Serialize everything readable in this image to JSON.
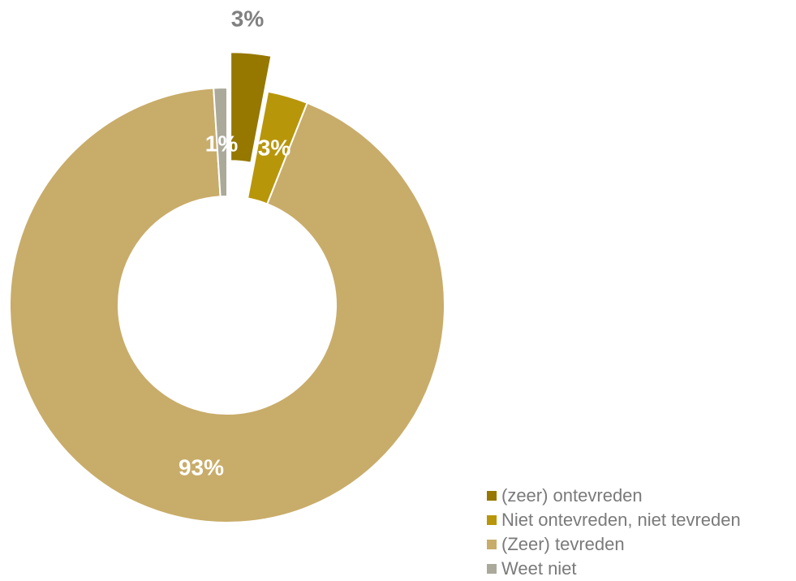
{
  "chart_data": {
    "type": "pie",
    "donut": true,
    "title": "",
    "slices": [
      {
        "label": "(zeer) ontevreden",
        "value": 3,
        "value_label": "3%",
        "color": "#967800",
        "exploded": true,
        "label_color": "#808080"
      },
      {
        "label": "Niet ontevreden, niet tevreden",
        "value": 3,
        "value_label": "3%",
        "color": "#B8960A",
        "exploded": false,
        "label_color": "#ffffff"
      },
      {
        "label": "(Zeer) tevreden",
        "value": 93,
        "value_label": "93%",
        "color": "#C8AC69",
        "exploded": false,
        "label_color": "#ffffff"
      },
      {
        "label": "Weet niet",
        "value": 1,
        "value_label": "1%",
        "color": "#ABA99A",
        "exploded": false,
        "label_color": "#ffffff"
      }
    ],
    "legend_position": "bottom-right"
  }
}
